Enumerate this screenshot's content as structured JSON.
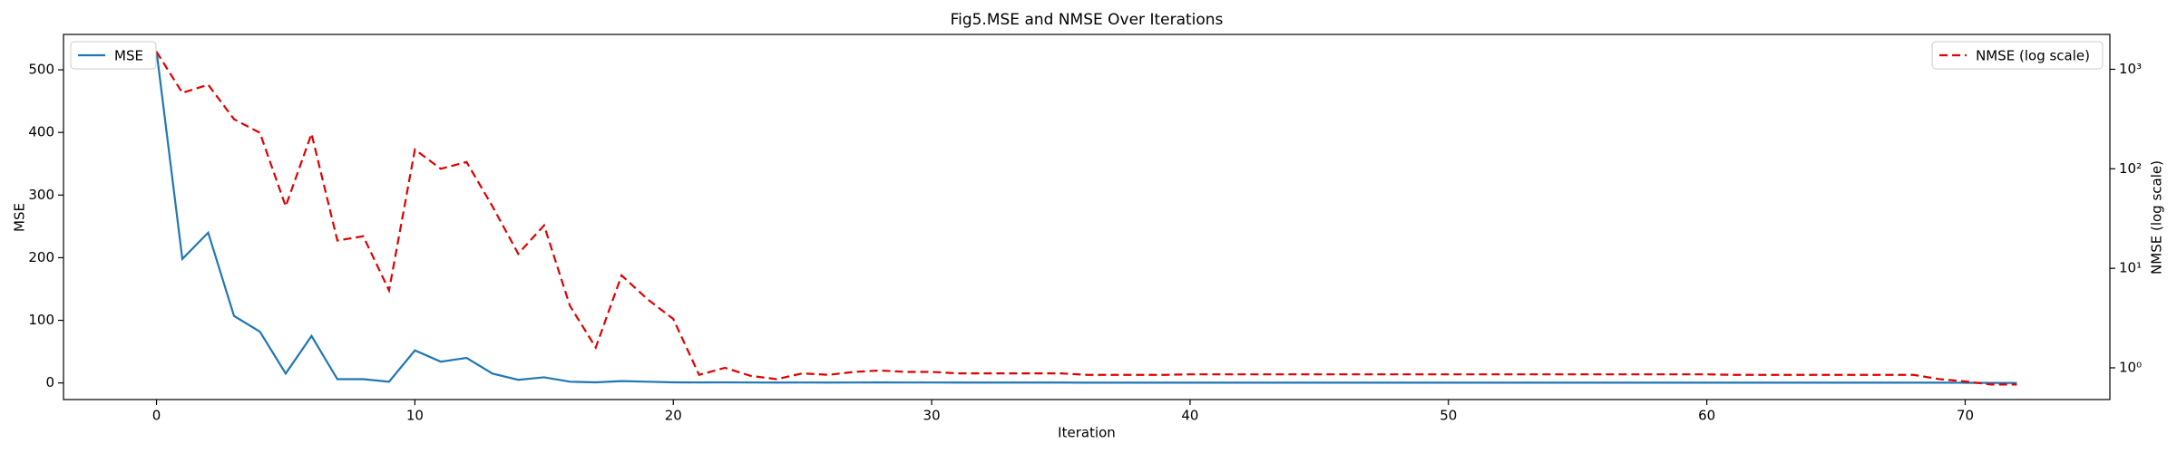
{
  "chart_data": {
    "type": "line",
    "title": "Fig5.MSE and NMSE Over Iterations",
    "x_label": "Iteration",
    "y_label": "MSE",
    "y2_label": "NMSE (log scale)",
    "x": [
      0,
      1,
      2,
      3,
      4,
      5,
      6,
      7,
      8,
      9,
      10,
      11,
      12,
      13,
      14,
      15,
      16,
      17,
      18,
      19,
      20,
      21,
      22,
      23,
      24,
      25,
      26,
      27,
      28,
      29,
      30,
      31,
      32,
      33,
      34,
      35,
      36,
      37,
      38,
      39,
      40,
      41,
      42,
      43,
      44,
      45,
      46,
      47,
      48,
      49,
      50,
      51,
      52,
      53,
      54,
      55,
      56,
      57,
      58,
      59,
      60,
      61,
      62,
      63,
      64,
      65,
      66,
      67,
      68,
      69,
      70,
      71,
      72
    ],
    "xlim": [
      -3.6,
      75.6
    ],
    "xticks": [
      0,
      10,
      20,
      30,
      40,
      50,
      60,
      70
    ],
    "ylim": [
      -26.5,
      556.5
    ],
    "yticks": [
      0,
      100,
      200,
      300,
      400,
      500
    ],
    "y2lim": [
      0.48,
      2240
    ],
    "y2_scale": "log",
    "y2ticks": [
      {
        "value": 1,
        "label": "10⁰"
      },
      {
        "value": 10,
        "label": "10¹"
      },
      {
        "value": 100,
        "label": "10²"
      },
      {
        "value": 1000,
        "label": "10³"
      }
    ],
    "series": [
      {
        "name": "MSE",
        "color": "#1f77b4",
        "axis": "y",
        "linestyle": "solid",
        "legend": "upper left",
        "values": [
          530,
          198,
          240,
          107,
          82,
          15,
          75,
          6,
          6,
          2,
          52,
          34,
          40,
          15,
          5,
          9,
          2,
          1,
          3,
          2,
          1,
          0.8,
          0.9,
          0.7,
          0.6,
          0.7,
          0.6,
          0.7,
          0.8,
          0.7,
          0.7,
          0.6,
          0.6,
          0.6,
          0.6,
          0.6,
          0.5,
          0.5,
          0.5,
          0.5,
          0.5,
          0.5,
          0.5,
          0.5,
          0.5,
          0.5,
          0.5,
          0.5,
          0.5,
          0.5,
          0.5,
          0.5,
          0.5,
          0.5,
          0.5,
          0.5,
          0.5,
          0.5,
          0.5,
          0.5,
          0.5,
          0.5,
          0.5,
          0.5,
          0.5,
          0.5,
          0.5,
          0.5,
          0.5,
          0.4,
          0.3,
          0.1,
          0
        ]
      },
      {
        "name": "NMSE (log scale)",
        "color": "#e00000",
        "axis": "y2",
        "linestyle": "dashed",
        "legend": "upper right",
        "values": [
          1500,
          580,
          700,
          315,
          230,
          42,
          225,
          19,
          21,
          6,
          156,
          100,
          117,
          42,
          14,
          27,
          4.2,
          1.6,
          8.5,
          4.9,
          3.1,
          0.85,
          1.0,
          0.83,
          0.77,
          0.88,
          0.85,
          0.91,
          0.94,
          0.91,
          0.91,
          0.88,
          0.88,
          0.88,
          0.88,
          0.88,
          0.85,
          0.85,
          0.85,
          0.85,
          0.86,
          0.86,
          0.86,
          0.86,
          0.86,
          0.86,
          0.86,
          0.86,
          0.86,
          0.86,
          0.86,
          0.86,
          0.86,
          0.86,
          0.86,
          0.86,
          0.86,
          0.86,
          0.86,
          0.86,
          0.86,
          0.85,
          0.85,
          0.85,
          0.85,
          0.85,
          0.85,
          0.85,
          0.85,
          0.77,
          0.73,
          0.68,
          0.68
        ]
      }
    ]
  }
}
